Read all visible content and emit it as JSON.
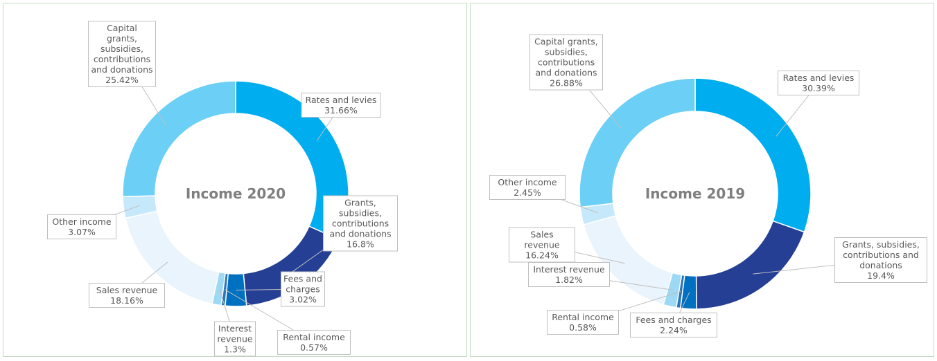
{
  "chart_data": [
    {
      "type": "pie",
      "donut": true,
      "title": "Income 2020",
      "categories": [
        "Rates and levies",
        "Grants, subsidies, contributions and donations",
        "Fees and charges",
        "Rental income",
        "Interest revenue",
        "Sales revenue",
        "Other income",
        "Capital grants, subsidies, contributions and donations"
      ],
      "values": [
        31.66,
        16.8,
        3.02,
        0.57,
        1.3,
        18.16,
        3.07,
        25.42
      ],
      "value_labels": [
        "31.66%",
        "16.8%",
        "3.02%",
        "0.57%",
        "1.3%",
        "18.16%",
        "3.07%",
        "25.42%"
      ],
      "colors": [
        "#00aeef",
        "#253f94",
        "#0070c0",
        "#2e75b6",
        "#9dd8f5",
        "#eaf4fc",
        "#c5e8fa",
        "#6ccff6"
      ]
    },
    {
      "type": "pie",
      "donut": true,
      "title": "Income 2019",
      "categories": [
        "Rates and levies",
        "Grants, subsidies, contributions and donations",
        "Fees and charges",
        "Rental income",
        "Interest revenue",
        "Sales revenue",
        "Other income",
        "Capital grants, subsidies, contributions and donations"
      ],
      "values": [
        30.39,
        19.4,
        2.24,
        0.58,
        1.82,
        16.24,
        2.45,
        26.88
      ],
      "value_labels": [
        "30.39%",
        "19.4%",
        "2.24%",
        "0.58%",
        "1.82%",
        "16.24%",
        "2.45%",
        "26.88%"
      ],
      "colors": [
        "#00aeef",
        "#253f94",
        "#0070c0",
        "#2e75b6",
        "#9dd8f5",
        "#eaf4fc",
        "#c5e8fa",
        "#6ccff6"
      ]
    }
  ]
}
